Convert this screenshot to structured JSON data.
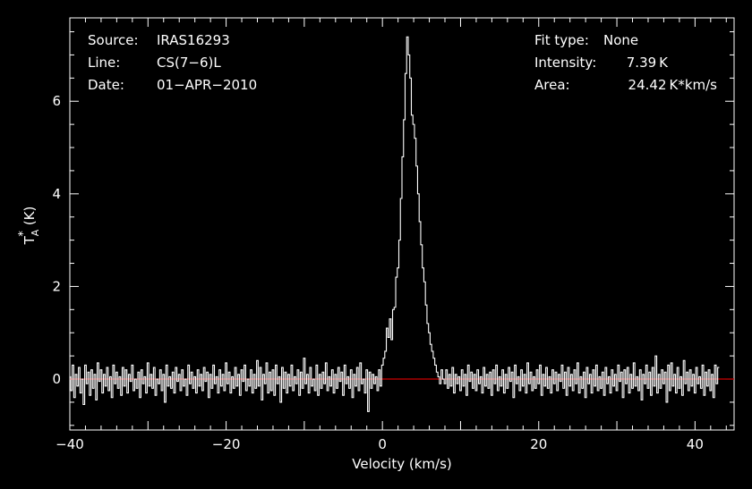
{
  "colors": {
    "background": "#000000",
    "foreground": "#ffffff",
    "baseline": "#cc0000"
  },
  "info_left": {
    "source_label": "Source:",
    "source_value": "IRAS16293",
    "line_label": "Line:",
    "line_value": "CS(7−6)L",
    "date_label": "Date:",
    "date_value": "01−APR−2010"
  },
  "info_right": {
    "fit_label": "Fit type:",
    "fit_value": "None",
    "intensity_label": "Intensity:",
    "intensity_value": "7.39 K",
    "area_label": "Area:",
    "area_value": "24.42 K*km/s"
  },
  "chart_data": {
    "type": "line",
    "xlabel": "Velocity (km/s)",
    "ylabel_main": "T",
    "ylabel_sub": "A",
    "ylabel_sup": "*",
    "ylabel_unit": "(K)",
    "xlim": [
      -40,
      45
    ],
    "ylim": [
      -1.1,
      7.8
    ],
    "x_ticks": [
      -40,
      -20,
      0,
      20,
      40
    ],
    "x_tick_labels": [
      "−40",
      "−20",
      "0",
      "20",
      "40"
    ],
    "y_ticks": [
      0,
      2,
      4,
      6
    ],
    "y_tick_labels": [
      "0",
      "2",
      "4",
      "6"
    ],
    "baseline_value": 0,
    "series": [
      {
        "x_start": -40,
        "x_step": 0.2,
        "values": [
          0.05,
          -0.25,
          0.3,
          -0.4,
          0.1,
          -0.15,
          0.25,
          -0.3,
          0.0,
          -0.55,
          0.3,
          -0.1,
          0.15,
          -0.35,
          0.2,
          -0.2,
          0.1,
          -0.45,
          0.35,
          -0.05,
          0.2,
          -0.3,
          0.1,
          -0.15,
          0.25,
          -0.25,
          0.05,
          -0.4,
          0.3,
          -0.1,
          0.15,
          -0.2,
          0.05,
          -0.35,
          0.25,
          -0.15,
          0.2,
          -0.3,
          0.1,
          -0.05,
          0.3,
          -0.25,
          0.0,
          -0.2,
          0.15,
          -0.4,
          0.2,
          -0.1,
          0.05,
          -0.3,
          0.35,
          -0.15,
          0.1,
          -0.2,
          0.25,
          -0.35,
          0.0,
          -0.1,
          0.2,
          -0.25,
          0.1,
          -0.5,
          0.3,
          -0.15,
          0.05,
          -0.2,
          0.15,
          -0.3,
          0.25,
          -0.05,
          0.1,
          -0.25,
          0.2,
          -0.15,
          0.0,
          -0.35,
          0.3,
          -0.1,
          0.15,
          -0.2,
          0.05,
          -0.3,
          0.2,
          -0.15,
          0.1,
          -0.25,
          0.25,
          -0.05,
          0.15,
          -0.4,
          0.1,
          -0.2,
          0.3,
          -0.1,
          0.05,
          -0.3,
          0.2,
          -0.15,
          0.1,
          -0.25,
          0.35,
          -0.1,
          0.15,
          -0.3,
          0.05,
          -0.2,
          0.25,
          -0.15,
          0.1,
          -0.35,
          0.2,
          -0.05,
          0.3,
          -0.25,
          0.0,
          -0.15,
          0.2,
          -0.3,
          0.1,
          -0.2,
          0.4,
          -0.15,
          0.25,
          -0.45,
          0.1,
          -0.1,
          0.35,
          -0.3,
          0.15,
          -0.25,
          0.2,
          -0.35,
          0.3,
          -0.1,
          0.05,
          -0.5,
          0.25,
          -0.2,
          0.15,
          -0.3,
          0.1,
          -0.15,
          0.3,
          -0.25,
          0.05,
          -0.1,
          0.2,
          -0.35,
          0.15,
          -0.2,
          0.45,
          -0.1,
          0.1,
          -0.3,
          0.25,
          -0.15,
          0.0,
          -0.25,
          0.3,
          -0.35,
          0.1,
          -0.2,
          0.15,
          -0.1,
          0.35,
          -0.25,
          0.05,
          -0.15,
          0.2,
          -0.3,
          0.1,
          -0.2,
          0.25,
          -0.05,
          0.15,
          -0.35,
          0.3,
          -0.1,
          0.05,
          -0.2,
          0.2,
          -0.4,
          0.1,
          -0.15,
          0.25,
          -0.25,
          0.35,
          -0.1,
          0.0,
          -0.3,
          0.2,
          -0.7,
          0.15,
          -0.2,
          0.1,
          -0.1,
          0.05,
          -0.25,
          0.2,
          -0.15,
          0.3,
          0.45,
          0.6,
          1.1,
          0.9,
          1.3,
          0.85,
          1.5,
          1.55,
          2.2,
          2.4,
          3.0,
          3.9,
          4.8,
          5.6,
          6.6,
          7.39,
          7.0,
          6.5,
          5.7,
          5.5,
          5.2,
          4.6,
          4.0,
          3.4,
          2.9,
          2.4,
          2.1,
          1.6,
          1.2,
          1.0,
          0.75,
          0.6,
          0.45,
          0.3,
          0.15,
          0.05,
          -0.1,
          0.2,
          0.0,
          -0.1,
          0.2,
          -0.2,
          0.1,
          -0.15,
          0.25,
          -0.3,
          0.1,
          -0.1,
          0.05,
          -0.25,
          0.2,
          -0.15,
          0.1,
          -0.35,
          0.3,
          -0.05,
          0.15,
          -0.2,
          0.1,
          -0.25,
          0.2,
          -0.1,
          0.05,
          -0.3,
          0.25,
          -0.15,
          0.1,
          -0.2,
          0.15,
          -0.35,
          0.2,
          -0.1,
          0.3,
          -0.25,
          0.05,
          -0.15,
          0.2,
          -0.3,
          0.1,
          -0.2,
          0.25,
          -0.05,
          0.15,
          -0.4,
          0.3,
          -0.1,
          0.05,
          -0.25,
          0.2,
          -0.15,
          0.1,
          -0.3,
          0.35,
          -0.1,
          0.15,
          -0.25,
          0.05,
          -0.2,
          0.2,
          -0.1,
          0.3,
          -0.35,
          0.1,
          -0.15,
          0.25,
          -0.2,
          0.05,
          -0.3,
          0.2,
          -0.1,
          0.15,
          -0.25,
          0.1,
          -0.05,
          0.3,
          -0.2,
          0.15,
          -0.35,
          0.25,
          -0.15,
          0.1,
          -0.25,
          0.2,
          -0.1,
          0.35,
          -0.3,
          0.05,
          -0.2,
          0.15,
          -0.4,
          0.25,
          -0.1,
          0.1,
          -0.3,
          0.2,
          -0.15,
          0.3,
          -0.25,
          0.05,
          -0.2,
          0.15,
          -0.35,
          0.25,
          -0.1,
          0.05,
          -0.3,
          0.2,
          -0.15,
          0.1,
          -0.25,
          0.3,
          -0.05,
          0.15,
          -0.4,
          0.2,
          -0.1,
          0.25,
          -0.3,
          0.1,
          -0.2,
          0.35,
          -0.15,
          0.05,
          -0.25,
          0.2,
          -0.45,
          0.1,
          -0.1,
          0.3,
          -0.2,
          0.15,
          -0.35,
          0.25,
          -0.15,
          0.5,
          -0.3,
          0.1,
          -0.2,
          0.2,
          -0.1,
          0.15,
          -0.5,
          0.3,
          -0.25,
          0.35,
          -0.15,
          0.1,
          -0.3,
          0.25,
          -0.2,
          0.05,
          -0.35,
          0.4,
          -0.1,
          0.15,
          -0.25,
          0.2,
          -0.15,
          0.1,
          -0.3,
          0.25,
          -0.1,
          0.05,
          -0.2,
          0.3,
          -0.35,
          0.15,
          -0.15,
          0.2,
          -0.25,
          0.1,
          -0.4,
          0.3,
          -0.1,
          0.25
        ]
      }
    ]
  }
}
